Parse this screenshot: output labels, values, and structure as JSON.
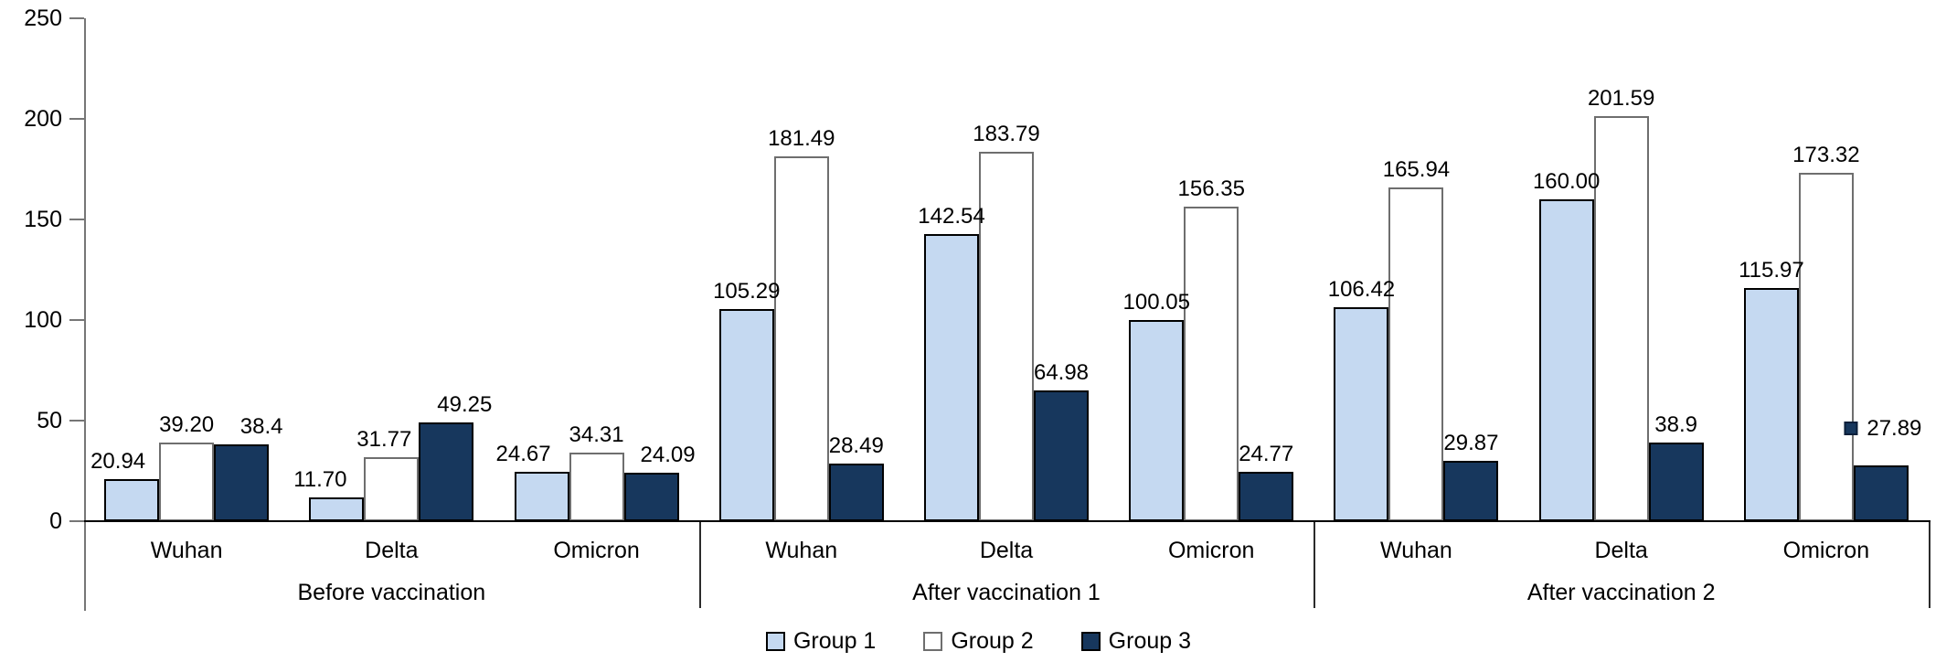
{
  "chart_data": {
    "type": "bar",
    "title": "",
    "ylim": [
      0,
      250
    ],
    "y_ticks": [
      0,
      50,
      100,
      150,
      200,
      250
    ],
    "grid": false,
    "phases": [
      "Before vaccination",
      "After vaccination 1",
      "After vaccination 2"
    ],
    "categories": [
      "Wuhan",
      "Delta",
      "Omicron",
      "Wuhan",
      "Delta",
      "Omicron",
      "Wuhan",
      "Delta",
      "Omicron"
    ],
    "series": [
      {
        "name": "Group 1",
        "color": "#C5D9F1",
        "border": "#000000",
        "values": [
          20.94,
          11.7,
          24.67,
          105.29,
          142.54,
          100.05,
          106.42,
          160.0,
          115.97
        ],
        "labels": [
          "20.94",
          "11.70",
          "24.67",
          "105.29",
          "142.54",
          "100.05",
          "106.42",
          "160.00",
          "115.97"
        ]
      },
      {
        "name": "Group 2",
        "color": "#FFFFFF",
        "border": "#6E6E6E",
        "values": [
          39.2,
          31.77,
          34.31,
          181.49,
          183.79,
          156.35,
          165.94,
          201.59,
          173.32
        ],
        "labels": [
          "39.20",
          "31.77",
          "34.31",
          "181.49",
          "183.79",
          "156.35",
          "165.94",
          "201.59",
          "173.32"
        ]
      },
      {
        "name": "Group 3",
        "color": "#17375D",
        "border": "#000000",
        "values": [
          38.4,
          49.25,
          24.09,
          28.49,
          64.98,
          24.77,
          29.87,
          38.9,
          27.89
        ],
        "labels": [
          "38.4",
          "49.25",
          "24.09",
          "28.49",
          "64.98",
          "24.77",
          "29.87",
          "38.9",
          "27.89"
        ]
      }
    ],
    "legend": {
      "position": "bottom-center",
      "entries": [
        "Group 1",
        "Group 2",
        "Group 3"
      ]
    },
    "annotations": [
      {
        "type": "small-square-marker",
        "color": "#17375D",
        "group": "After vaccination 2",
        "category": "Omicron",
        "series": "Group 3",
        "note": "small navy square shown immediately left of the 27.89 data label"
      }
    ],
    "axis_colors": {
      "y_axis": "#767676",
      "x_axis": "#000000"
    }
  }
}
